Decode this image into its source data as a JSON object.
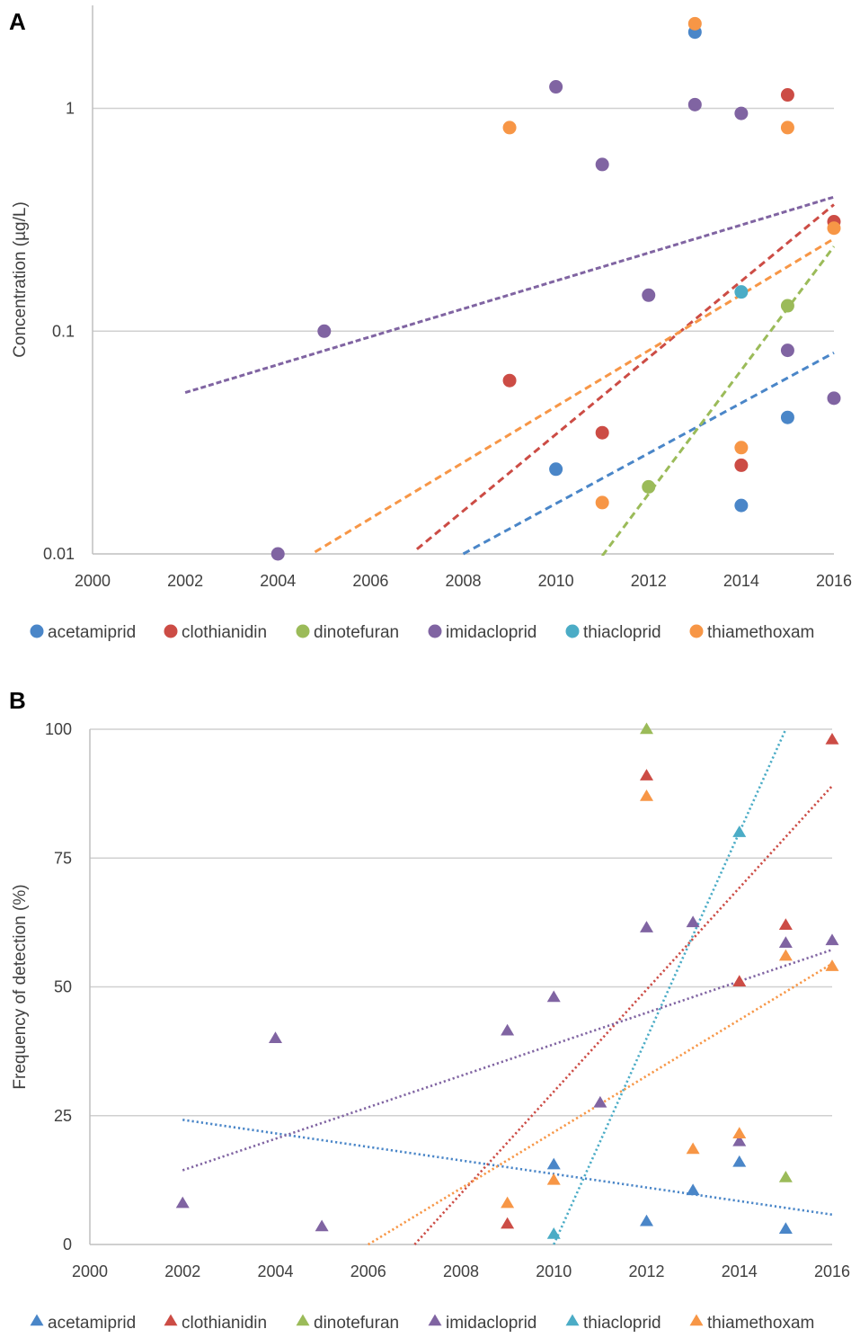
{
  "chart_data": [
    {
      "panel": "A",
      "type": "scatter",
      "yscale": "log",
      "ylabel": "Concentration (µg/L)",
      "xlim": [
        2000,
        2016
      ],
      "ylim": [
        0.01,
        2.9
      ],
      "xticks": [
        "2000",
        "2002",
        "2004",
        "2006",
        "2008",
        "2010",
        "2012",
        "2014",
        "2016"
      ],
      "yticks": [
        {
          "value": 0.01,
          "label": "0.01"
        },
        {
          "value": 0.1,
          "label": "0.1"
        },
        {
          "value": 1,
          "label": "1"
        }
      ],
      "marker": "circle",
      "series": [
        {
          "name": "acetamiprid",
          "color": "#4a86c8",
          "points": [
            [
              2010,
              0.024
            ],
            [
              2013,
              2.2
            ],
            [
              2014,
              0.0165
            ],
            [
              2015,
              0.041
            ]
          ],
          "trend": [
            [
              2008,
              0.01
            ],
            [
              2016,
              0.08
            ]
          ],
          "trend_style": "dashed"
        },
        {
          "name": "clothianidin",
          "color": "#cc4c45",
          "points": [
            [
              2009,
              0.06
            ],
            [
              2011,
              0.035
            ],
            [
              2014,
              0.025
            ],
            [
              2015,
              1.15
            ],
            [
              2016,
              0.31
            ]
          ],
          "trend": [
            [
              2007,
              0.0105
            ],
            [
              2016,
              0.37
            ]
          ],
          "trend_style": "dashed"
        },
        {
          "name": "dinotefuran",
          "color": "#9bbb59",
          "points": [
            [
              2012,
              0.02
            ],
            [
              2015,
              0.13
            ]
          ],
          "trend": [
            [
              2011,
              0.0098
            ],
            [
              2016,
              0.24
            ]
          ],
          "trend_style": "dashed"
        },
        {
          "name": "imidacloprid",
          "color": "#8064a2",
          "points": [
            [
              2004,
              0.01
            ],
            [
              2005,
              0.1
            ],
            [
              2010,
              1.25
            ],
            [
              2011,
              0.56
            ],
            [
              2012,
              0.145
            ],
            [
              2013,
              1.04
            ],
            [
              2014,
              0.95
            ],
            [
              2015,
              0.082
            ],
            [
              2016,
              0.05
            ]
          ],
          "trend": [
            [
              2002,
              0.053
            ],
            [
              2016,
              0.4
            ]
          ],
          "trend_style": "short-dash"
        },
        {
          "name": "thiacloprid",
          "color": "#4bacc6",
          "points": [
            [
              2014,
              0.15
            ]
          ],
          "trend": null,
          "trend_style": null
        },
        {
          "name": "thiamethoxam",
          "color": "#f79646",
          "points": [
            [
              2009,
              0.82
            ],
            [
              2011,
              0.017
            ],
            [
              2013,
              2.4
            ],
            [
              2014,
              0.03
            ],
            [
              2015,
              0.82
            ],
            [
              2016,
              0.29
            ]
          ],
          "trend": [
            [
              2004.8,
              0.0102
            ],
            [
              2016,
              0.26
            ]
          ],
          "trend_style": "dashed"
        }
      ]
    },
    {
      "panel": "B",
      "type": "scatter",
      "yscale": "linear",
      "ylabel": "Frequency of detection (%)",
      "xlim": [
        2000,
        2016
      ],
      "ylim": [
        0,
        100
      ],
      "xticks": [
        "2000",
        "2002",
        "2004",
        "2006",
        "2008",
        "2010",
        "2012",
        "2014",
        "2016"
      ],
      "yticks": [
        {
          "value": 0,
          "label": "0"
        },
        {
          "value": 25,
          "label": "25"
        },
        {
          "value": 50,
          "label": "50"
        },
        {
          "value": 75,
          "label": "75"
        },
        {
          "value": 100,
          "label": "100"
        }
      ],
      "marker": "triangle",
      "series": [
        {
          "name": "acetamiprid",
          "color": "#4a86c8",
          "points": [
            [
              2010,
              15.5
            ],
            [
              2012,
              4.5
            ],
            [
              2013,
              10.5
            ],
            [
              2014,
              16
            ],
            [
              2015,
              3
            ]
          ],
          "trend": [
            [
              2002,
              24.2
            ],
            [
              2016,
              5.8
            ]
          ],
          "trend_style": "dotted"
        },
        {
          "name": "clothianidin",
          "color": "#cc4c45",
          "points": [
            [
              2009,
              4
            ],
            [
              2012,
              91
            ],
            [
              2014,
              51
            ],
            [
              2015,
              62
            ],
            [
              2016,
              98
            ]
          ],
          "trend": [
            [
              2007,
              0
            ],
            [
              2016,
              89
            ]
          ],
          "trend_style": "dotted"
        },
        {
          "name": "dinotefuran",
          "color": "#9bbb59",
          "points": [
            [
              2012,
              100
            ],
            [
              2015,
              13
            ]
          ],
          "trend": null,
          "trend_style": null
        },
        {
          "name": "imidacloprid",
          "color": "#8064a2",
          "points": [
            [
              2002,
              8
            ],
            [
              2004,
              40
            ],
            [
              2005,
              3.5
            ],
            [
              2009,
              41.5
            ],
            [
              2010,
              48
            ],
            [
              2011,
              27.5
            ],
            [
              2012,
              61.5
            ],
            [
              2013,
              62.5
            ],
            [
              2014,
              20
            ],
            [
              2015,
              58.5
            ],
            [
              2016,
              59
            ]
          ],
          "trend": [
            [
              2002,
              14.4
            ],
            [
              2016,
              57.2
            ]
          ],
          "trend_style": "dotted"
        },
        {
          "name": "thiacloprid",
          "color": "#4bacc6",
          "points": [
            [
              2010,
              2
            ],
            [
              2014,
              80
            ]
          ],
          "trend": [
            [
              2010,
              0
            ],
            [
              2015,
              100
            ]
          ],
          "trend_style": "dotted"
        },
        {
          "name": "thiamethoxam",
          "color": "#f79646",
          "points": [
            [
              2009,
              8
            ],
            [
              2010,
              12.5
            ],
            [
              2012,
              87
            ],
            [
              2013,
              18.5
            ],
            [
              2014,
              21.5
            ],
            [
              2015,
              56
            ],
            [
              2016,
              54
            ]
          ],
          "trend": [
            [
              2006,
              0
            ],
            [
              2016,
              54.5
            ]
          ],
          "trend_style": "dotted"
        }
      ]
    }
  ]
}
